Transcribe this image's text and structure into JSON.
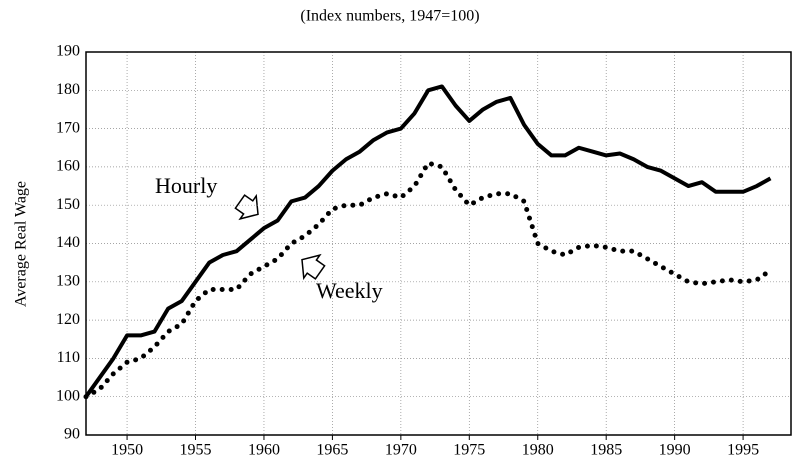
{
  "chart_data": {
    "type": "line",
    "subtitle": "(Index numbers, 1947=100)",
    "y_label": "Average Real Wage",
    "x": [
      1947,
      1948,
      1949,
      1950,
      1951,
      1952,
      1953,
      1954,
      1955,
      1956,
      1957,
      1958,
      1959,
      1960,
      1961,
      1962,
      1963,
      1964,
      1965,
      1966,
      1967,
      1968,
      1969,
      1970,
      1971,
      1972,
      1973,
      1974,
      1975,
      1976,
      1977,
      1978,
      1979,
      1980,
      1981,
      1982,
      1983,
      1984,
      1985,
      1986,
      1987,
      1988,
      1989,
      1990,
      1991,
      1992,
      1993,
      1994,
      1995,
      1996,
      1997
    ],
    "series": [
      {
        "name": "Hourly",
        "color": "#000000",
        "style": "solid",
        "values": [
          100,
          105,
          110,
          116,
          116,
          117,
          123,
          125,
          130,
          135,
          137,
          138,
          141,
          144,
          146,
          151,
          152,
          155,
          159,
          162,
          164,
          167,
          169,
          170,
          174,
          180,
          181,
          176,
          172,
          175,
          177,
          178,
          171,
          166,
          163,
          163,
          165,
          164,
          163,
          163.5,
          162,
          160,
          159,
          157,
          155,
          156,
          153.5,
          153.5,
          153.5,
          155,
          157
        ]
      },
      {
        "name": "Weekly",
        "color": "#000000",
        "style": "dotted",
        "values": [
          100,
          102,
          106,
          109,
          110,
          113,
          117,
          119,
          125,
          128,
          128,
          128,
          132,
          134,
          136,
          140,
          142,
          145,
          149,
          150,
          150,
          152,
          153,
          152,
          155,
          161,
          160,
          154,
          150,
          152,
          153,
          153,
          151,
          140,
          138,
          137,
          139,
          139.5,
          139,
          138,
          138,
          136,
          134,
          132,
          130,
          129.5,
          130,
          130.5,
          130,
          130.5,
          133
        ]
      }
    ],
    "xlim": [
      1947,
      1998.5
    ],
    "xticks": [
      1950,
      1955,
      1960,
      1965,
      1970,
      1975,
      1980,
      1985,
      1990,
      1995
    ],
    "ylim": [
      90,
      190
    ],
    "yticks": [
      90,
      100,
      110,
      120,
      130,
      140,
      150,
      160,
      170,
      180,
      190
    ],
    "grid": true
  }
}
